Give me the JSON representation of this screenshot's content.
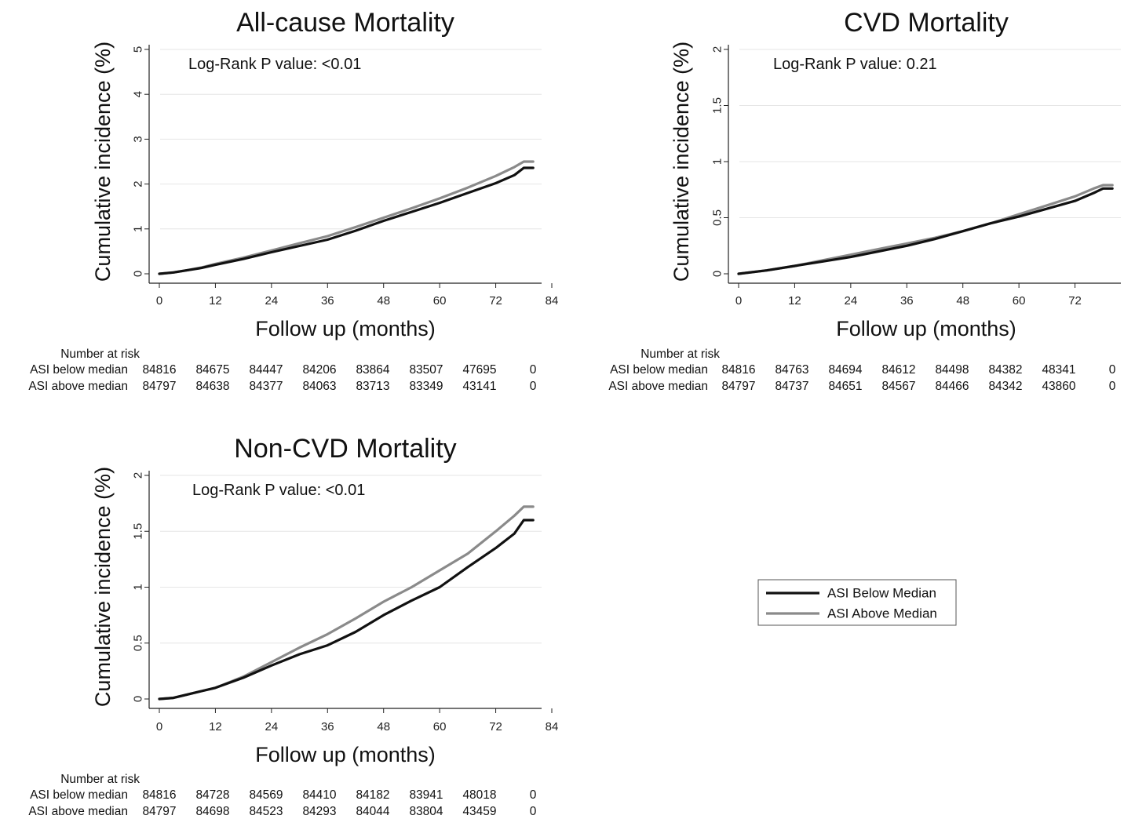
{
  "figure": {
    "legend": {
      "entries": [
        {
          "label": "ASI Below Median",
          "color": "#111111"
        },
        {
          "label": "ASI Above Median",
          "color": "#8a8a8a"
        }
      ]
    }
  },
  "chart_data": [
    {
      "type": "line",
      "title": "All-cause Mortality",
      "xlabel": "Follow up (months)",
      "ylabel": "Cumulative incidence (%)",
      "annotation": "Log-Rank P value: <0.01",
      "xlim": [
        0,
        84
      ],
      "ylim": [
        0,
        5
      ],
      "xticks": [
        0,
        12,
        24,
        36,
        48,
        60,
        72,
        84
      ],
      "yticks": [
        0,
        1,
        2,
        3,
        4,
        5
      ],
      "ytick_labels": [
        "0",
        "1",
        "2",
        "3",
        "4",
        "5"
      ],
      "grid": true,
      "series": [
        {
          "name": "ASI Below Median",
          "color": "#111111",
          "x": [
            0,
            3,
            6,
            9,
            12,
            18,
            24,
            30,
            36,
            42,
            48,
            54,
            60,
            66,
            72,
            76,
            78,
            80
          ],
          "y": [
            0,
            0.03,
            0.08,
            0.13,
            0.2,
            0.33,
            0.48,
            0.62,
            0.76,
            0.96,
            1.18,
            1.38,
            1.58,
            1.8,
            2.02,
            2.2,
            2.36,
            2.36
          ]
        },
        {
          "name": "ASI Above Median",
          "color": "#8a8a8a",
          "x": [
            0,
            3,
            6,
            9,
            12,
            18,
            24,
            30,
            36,
            42,
            48,
            54,
            60,
            66,
            72,
            76,
            78,
            80
          ],
          "y": [
            0,
            0.03,
            0.08,
            0.14,
            0.22,
            0.36,
            0.52,
            0.68,
            0.84,
            1.04,
            1.25,
            1.46,
            1.68,
            1.92,
            2.18,
            2.38,
            2.5,
            2.5
          ]
        }
      ],
      "risk_table": {
        "header": "Number at risk",
        "rows": [
          {
            "label": "ASI below median",
            "values": [
              "84816",
              "84675",
              "84447",
              "84206",
              "83864",
              "83507",
              "47695",
              "0"
            ]
          },
          {
            "label": "ASI above median",
            "values": [
              "84797",
              "84638",
              "84377",
              "84063",
              "83713",
              "83349",
              "43141",
              "0"
            ]
          }
        ]
      }
    },
    {
      "type": "line",
      "title": "CVD Mortality",
      "xlabel": "Follow up (months)",
      "ylabel": "Cumulative incidence (%)",
      "annotation": "Log-Rank P value: 0.21",
      "xlim": [
        0,
        84
      ],
      "ylim": [
        0,
        2
      ],
      "xticks": [
        0,
        12,
        24,
        36,
        48,
        60,
        72,
        84
      ],
      "yticks": [
        0,
        0.5,
        1,
        1.5,
        2
      ],
      "ytick_labels": [
        "0",
        "0.5",
        "1",
        "1.5",
        "2"
      ],
      "grid": true,
      "series": [
        {
          "name": "ASI Below Median",
          "color": "#111111",
          "x": [
            0,
            6,
            12,
            18,
            24,
            30,
            36,
            42,
            48,
            54,
            60,
            66,
            72,
            76,
            78,
            80
          ],
          "y": [
            0,
            0.03,
            0.07,
            0.11,
            0.15,
            0.2,
            0.25,
            0.31,
            0.38,
            0.45,
            0.51,
            0.58,
            0.65,
            0.72,
            0.76,
            0.76
          ]
        },
        {
          "name": "ASI Above Median",
          "color": "#8a8a8a",
          "x": [
            0,
            6,
            12,
            18,
            24,
            30,
            36,
            42,
            48,
            54,
            60,
            66,
            72,
            76,
            78,
            80
          ],
          "y": [
            0,
            0.03,
            0.07,
            0.12,
            0.17,
            0.22,
            0.27,
            0.32,
            0.38,
            0.45,
            0.53,
            0.61,
            0.69,
            0.76,
            0.79,
            0.79
          ]
        }
      ],
      "risk_table": {
        "header": "Number at risk",
        "rows": [
          {
            "label": "ASI below median",
            "values": [
              "84816",
              "84763",
              "84694",
              "84612",
              "84498",
              "84382",
              "48341",
              "0"
            ]
          },
          {
            "label": "ASI above median",
            "values": [
              "84797",
              "84737",
              "84651",
              "84567",
              "84466",
              "84342",
              "43860",
              "0"
            ]
          }
        ]
      }
    },
    {
      "type": "line",
      "title": "Non-CVD Mortality",
      "xlabel": "Follow up (months)",
      "ylabel": "Cumulative incidence (%)",
      "annotation": "Log-Rank P value: <0.01",
      "xlim": [
        0,
        84
      ],
      "ylim": [
        0,
        2
      ],
      "xticks": [
        0,
        12,
        24,
        36,
        48,
        60,
        72,
        84
      ],
      "yticks": [
        0,
        0.5,
        1,
        1.5,
        2
      ],
      "ytick_labels": [
        "0",
        "0.5",
        "1",
        "1.5",
        "2"
      ],
      "grid": true,
      "series": [
        {
          "name": "ASI Below Median",
          "color": "#111111",
          "x": [
            0,
            3,
            6,
            9,
            12,
            18,
            24,
            30,
            36,
            42,
            48,
            54,
            60,
            66,
            72,
            76,
            78,
            80
          ],
          "y": [
            0,
            0.01,
            0.04,
            0.07,
            0.1,
            0.19,
            0.3,
            0.4,
            0.48,
            0.6,
            0.75,
            0.88,
            1.0,
            1.18,
            1.35,
            1.48,
            1.6,
            1.6
          ]
        },
        {
          "name": "ASI Above Median",
          "color": "#8a8a8a",
          "x": [
            0,
            3,
            6,
            9,
            12,
            18,
            24,
            30,
            36,
            42,
            48,
            54,
            60,
            66,
            72,
            76,
            78,
            80
          ],
          "y": [
            0,
            0.01,
            0.04,
            0.07,
            0.1,
            0.2,
            0.33,
            0.46,
            0.58,
            0.72,
            0.87,
            1.0,
            1.15,
            1.3,
            1.5,
            1.64,
            1.72,
            1.72
          ]
        }
      ],
      "risk_table": {
        "header": "Number at risk",
        "rows": [
          {
            "label": "ASI below median",
            "values": [
              "84816",
              "84728",
              "84569",
              "84410",
              "84182",
              "83941",
              "48018",
              "0"
            ]
          },
          {
            "label": "ASI above median",
            "values": [
              "84797",
              "84698",
              "84523",
              "84293",
              "84044",
              "83804",
              "43459",
              "0"
            ]
          }
        ]
      }
    }
  ]
}
